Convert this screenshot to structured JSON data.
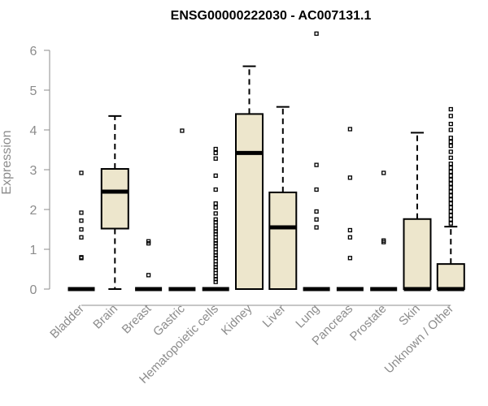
{
  "chart_data": {
    "type": "box",
    "title": "ENSG00000222030 - AC007131.1",
    "ylabel": "Expression",
    "xlabel": "",
    "ylim": [
      0,
      6.4
    ],
    "yticks": [
      0,
      1,
      2,
      3,
      4,
      5,
      6
    ],
    "box_fill": "#ede6cc",
    "box_stroke": "#000000",
    "axis_color": "#8c8c8c",
    "categories": [
      {
        "name": "Bladder",
        "q1": 0,
        "median": 0,
        "q3": 0,
        "whisker_low": 0,
        "whisker_high": 0,
        "outliers": [
          0.78,
          0.8,
          1.3,
          1.5,
          1.72,
          1.92,
          2.92
        ]
      },
      {
        "name": "Brain",
        "q1": 1.52,
        "median": 2.45,
        "q3": 3.02,
        "whisker_low": 0,
        "whisker_high": 4.35,
        "outliers": []
      },
      {
        "name": "Breast",
        "q1": 0,
        "median": 0,
        "q3": 0,
        "whisker_low": 0,
        "whisker_high": 0,
        "outliers": [
          0.35,
          1.15,
          1.2
        ]
      },
      {
        "name": "Gastric",
        "q1": 0,
        "median": 0,
        "q3": 0,
        "whisker_low": 0,
        "whisker_high": 0,
        "outliers": [
          3.98
        ]
      },
      {
        "name": "Hematopoietic cells",
        "q1": 0,
        "median": 0,
        "q3": 0,
        "whisker_low": 0,
        "whisker_high": 0,
        "outliers": [
          0.18,
          0.25,
          0.32,
          0.4,
          0.48,
          0.55,
          0.62,
          0.7,
          0.78,
          0.85,
          0.92,
          1.0,
          1.08,
          1.15,
          1.22,
          1.3,
          1.38,
          1.45,
          1.52,
          1.6,
          1.68,
          1.75,
          1.9,
          2.05,
          2.15,
          2.5,
          2.85,
          3.28,
          3.42,
          3.52
        ]
      },
      {
        "name": "Kidney",
        "q1": 0,
        "median": 3.42,
        "q3": 4.4,
        "whisker_low": 0,
        "whisker_high": 5.6,
        "outliers": []
      },
      {
        "name": "Liver",
        "q1": 0,
        "median": 1.55,
        "q3": 2.43,
        "whisker_low": 0,
        "whisker_high": 4.58,
        "outliers": []
      },
      {
        "name": "Lung",
        "q1": 0,
        "median": 0,
        "q3": 0,
        "whisker_low": 0,
        "whisker_high": 0,
        "outliers": [
          1.55,
          1.75,
          1.95,
          2.5,
          3.12,
          6.42
        ]
      },
      {
        "name": "Pancreas",
        "q1": 0,
        "median": 0,
        "q3": 0,
        "whisker_low": 0,
        "whisker_high": 0,
        "outliers": [
          0.78,
          1.3,
          1.48,
          2.8,
          4.02
        ]
      },
      {
        "name": "Prostate",
        "q1": 0,
        "median": 0,
        "q3": 0,
        "whisker_low": 0,
        "whisker_high": 0,
        "outliers": [
          1.18,
          1.22,
          2.92
        ]
      },
      {
        "name": "Skin",
        "q1": 0,
        "median": 0,
        "q3": 1.76,
        "whisker_low": 0,
        "whisker_high": 3.93,
        "outliers": []
      },
      {
        "name": "Unknown / Other",
        "q1": 0,
        "median": 0,
        "q3": 0.63,
        "whisker_low": 0,
        "whisker_high": 1.57,
        "outliers": [
          1.65,
          1.75,
          1.85,
          1.95,
          2.05,
          2.15,
          2.25,
          2.35,
          2.45,
          2.55,
          2.65,
          2.75,
          2.85,
          2.95,
          3.05,
          3.15,
          3.3,
          3.45,
          3.6,
          3.7,
          3.8,
          4.0,
          4.15,
          4.35,
          4.52
        ]
      }
    ]
  }
}
